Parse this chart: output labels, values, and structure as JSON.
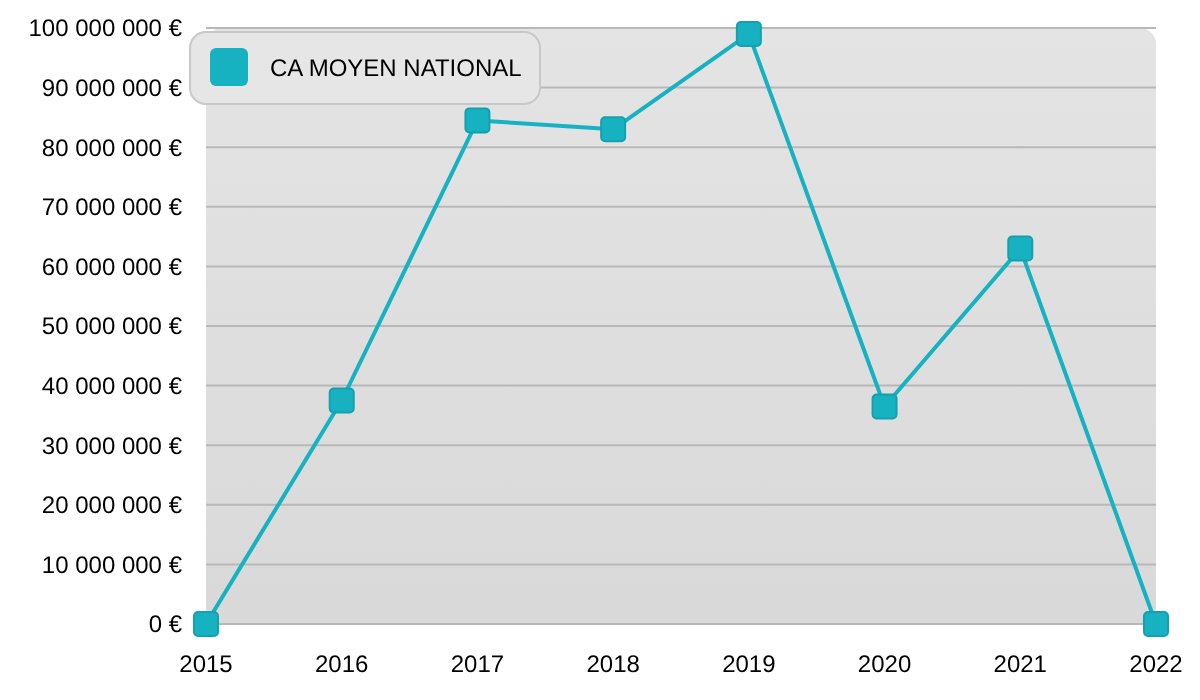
{
  "chart_data": {
    "type": "line",
    "x": [
      2015,
      2016,
      2017,
      2018,
      2019,
      2020,
      2021,
      2022
    ],
    "series": [
      {
        "name": "CA MOYEN NATIONAL",
        "color": "#17b2c2",
        "values": [
          0,
          37500000,
          84500000,
          83000000,
          99000000,
          36500000,
          63000000,
          0
        ]
      }
    ],
    "xlim": [
      2015,
      2022
    ],
    "xticks": [
      2015,
      2016,
      2017,
      2018,
      2019,
      2020,
      2021,
      2022
    ],
    "ylim": [
      0,
      100000000
    ],
    "yticks": [
      {
        "value": 0,
        "label": "0 €"
      },
      {
        "value": 10000000,
        "label": "10 000 000 €"
      },
      {
        "value": 20000000,
        "label": "20 000 000 €"
      },
      {
        "value": 30000000,
        "label": "30 000 000 €"
      },
      {
        "value": 40000000,
        "label": "40 000 000 €"
      },
      {
        "value": 50000000,
        "label": "50 000 000 €"
      },
      {
        "value": 60000000,
        "label": "60 000 000 €"
      },
      {
        "value": 70000000,
        "label": "70 000 000 €"
      },
      {
        "value": 80000000,
        "label": "80 000 000 €"
      },
      {
        "value": 90000000,
        "label": "90 000 000 €"
      },
      {
        "value": 100000000,
        "label": "100 000 000 €"
      }
    ],
    "grid": "y",
    "legend": "top left",
    "marker": "square",
    "line_style": "solid"
  }
}
